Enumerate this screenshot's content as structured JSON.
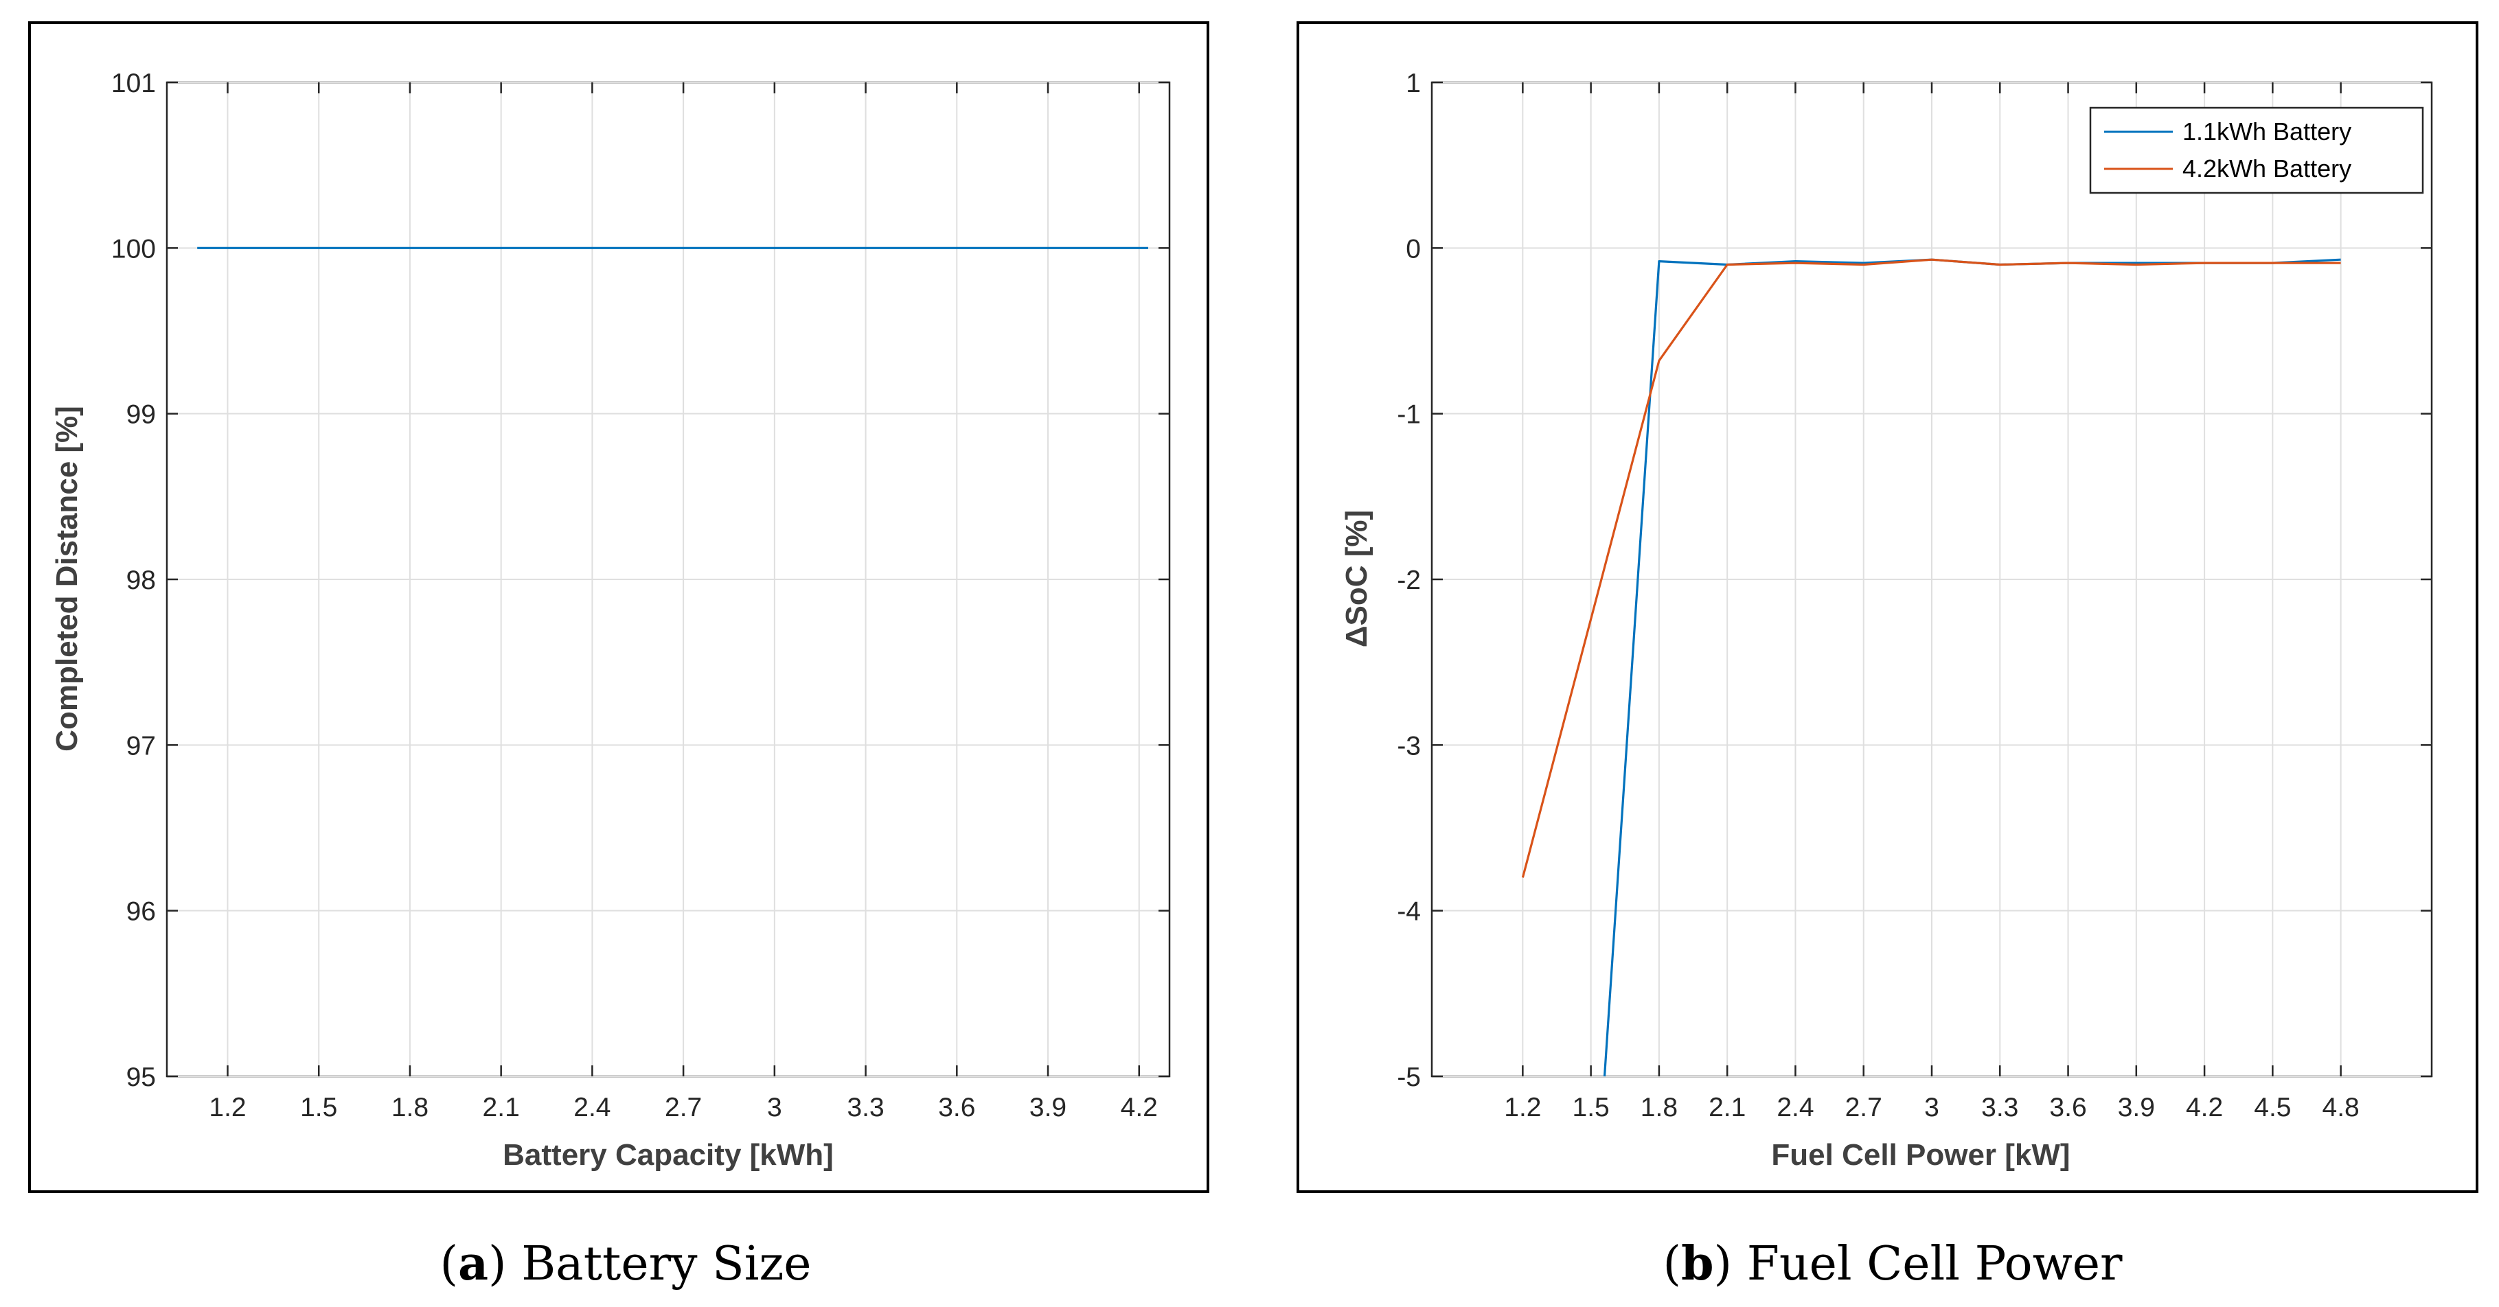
{
  "chart_data": [
    {
      "type": "line",
      "panel_label": "a",
      "caption": "Battery Size",
      "title": "",
      "xlabel": "Battery Capacity [kWh]",
      "ylabel": "Completed Distance [%]",
      "xlim": [
        1.0,
        4.3
      ],
      "ylim": [
        95,
        101
      ],
      "xticks": [
        1.2,
        1.5,
        1.8,
        2.1,
        2.4,
        2.7,
        3,
        3.3,
        3.6,
        3.9,
        4.2
      ],
      "xtick_labels": [
        "1.2",
        "1.5",
        "1.8",
        "2.1",
        "2.4",
        "2.7",
        "3",
        "3.3",
        "3.6",
        "3.9",
        "4.2"
      ],
      "yticks": [
        95,
        96,
        97,
        98,
        99,
        100,
        101
      ],
      "ytick_labels": [
        "95",
        "96",
        "97",
        "98",
        "99",
        "100",
        "101"
      ],
      "grid": true,
      "legend": null,
      "series": [
        {
          "name": "Completed Distance",
          "color": "#0072BD",
          "x": [
            1.1,
            4.23
          ],
          "y": [
            100,
            100
          ]
        }
      ]
    },
    {
      "type": "line",
      "panel_label": "b",
      "caption": "Fuel Cell Power",
      "title": "",
      "xlabel": "Fuel Cell Power [kW]",
      "ylabel": "ΔSoC [%]",
      "xlim": [
        0.8,
        5.2
      ],
      "ylim": [
        -5,
        1
      ],
      "xticks": [
        1.2,
        1.5,
        1.8,
        2.1,
        2.4,
        2.7,
        3,
        3.3,
        3.6,
        3.9,
        4.2,
        4.5,
        4.8
      ],
      "xtick_labels": [
        "1.2",
        "1.5",
        "1.8",
        "2.1",
        "2.4",
        "2.7",
        "3",
        "3.3",
        "3.6",
        "3.9",
        "4.2",
        "4.5",
        "4.8"
      ],
      "yticks": [
        -5,
        -4,
        -3,
        -2,
        -1,
        0,
        1
      ],
      "ytick_labels": [
        "-5",
        "-4",
        "-3",
        "-2",
        "-1",
        "0",
        "1"
      ],
      "grid": true,
      "legend": "top-right",
      "series": [
        {
          "name": "1.1kWh Battery",
          "color": "#0072BD",
          "x": [
            1.56,
            1.8,
            2.1,
            2.4,
            2.7,
            3.0,
            3.3,
            3.6,
            3.9,
            4.2,
            4.5,
            4.8
          ],
          "y": [
            -5.0,
            -0.08,
            -0.1,
            -0.08,
            -0.09,
            -0.07,
            -0.1,
            -0.09,
            -0.09,
            -0.09,
            -0.09,
            -0.07
          ]
        },
        {
          "name": "4.2kWh Battery",
          "color": "#D95319",
          "x": [
            1.2,
            1.8,
            2.1,
            2.4,
            2.7,
            3.0,
            3.3,
            3.6,
            3.9,
            4.2,
            4.5,
            4.8
          ],
          "y": [
            -3.8,
            -0.68,
            -0.1,
            -0.09,
            -0.1,
            -0.07,
            -0.1,
            -0.09,
            -0.1,
            -0.09,
            -0.09,
            -0.09
          ]
        }
      ]
    }
  ]
}
